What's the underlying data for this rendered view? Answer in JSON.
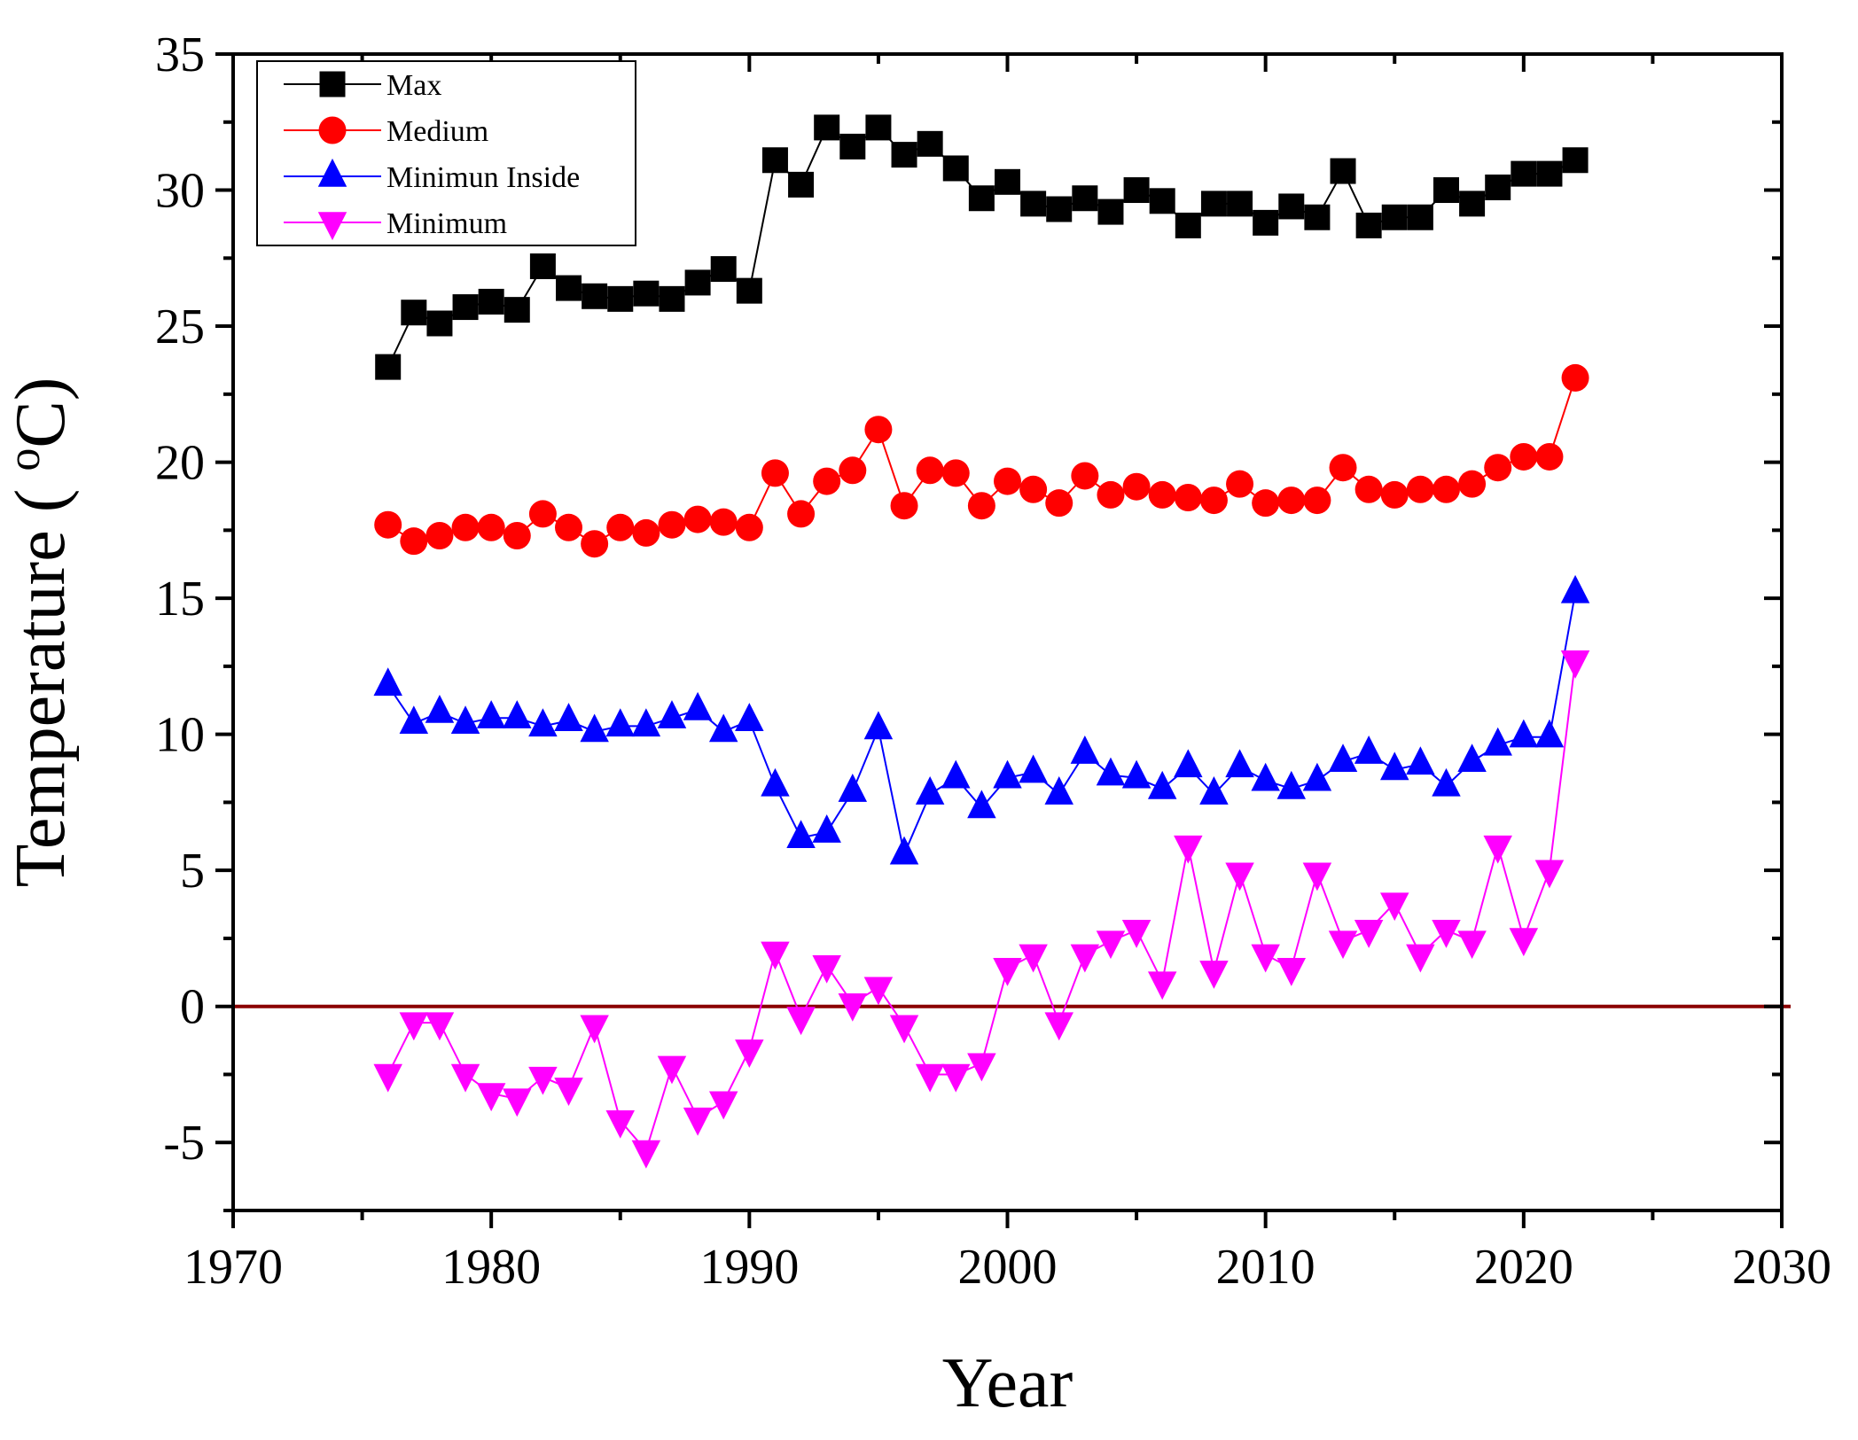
{
  "chart_data": {
    "type": "line",
    "title": "",
    "xlabel": "Year",
    "ylabel": "Temperature ( ",
    "ylabel_sup": "o",
    "ylabel_unit": "C)",
    "xlim": [
      1970,
      2030
    ],
    "ylim": [
      -7.5,
      35
    ],
    "xticks": [
      1970,
      1980,
      1990,
      2000,
      2010,
      2020,
      2030
    ],
    "yticks": [
      -5,
      0,
      5,
      10,
      15,
      20,
      25,
      30,
      35
    ],
    "xtick_labels": [
      "1970",
      "1980",
      "1990",
      "2000",
      "2010",
      "2020",
      "2030"
    ],
    "ytick_labels": [
      "-5",
      "0",
      "5",
      "10",
      "15",
      "20",
      "25",
      "30",
      "35"
    ],
    "reference_line": {
      "y": 0,
      "color": "#8b0000"
    },
    "legend_position": "top-left",
    "x": [
      1976,
      1977,
      1978,
      1979,
      1980,
      1981,
      1982,
      1983,
      1984,
      1985,
      1986,
      1987,
      1988,
      1989,
      1990,
      1991,
      1992,
      1993,
      1994,
      1995,
      1996,
      1997,
      1998,
      1999,
      2000,
      2001,
      2002,
      2003,
      2004,
      2005,
      2006,
      2007,
      2008,
      2009,
      2010,
      2011,
      2012,
      2013,
      2014,
      2015,
      2016,
      2017,
      2018,
      2019,
      2020,
      2021,
      2022
    ],
    "series": [
      {
        "name": "Max",
        "color": "#000000",
        "marker": "square",
        "values": [
          23.5,
          25.5,
          25.1,
          25.7,
          25.9,
          25.6,
          27.2,
          26.4,
          26.1,
          26.0,
          26.2,
          26.0,
          26.6,
          27.1,
          26.3,
          31.1,
          30.2,
          32.3,
          31.6,
          32.3,
          31.3,
          31.7,
          30.8,
          29.7,
          30.3,
          29.5,
          29.3,
          29.7,
          29.2,
          30.0,
          29.6,
          28.7,
          29.5,
          29.5,
          28.8,
          29.4,
          29.0,
          30.7,
          28.7,
          29.0,
          29.0,
          30.0,
          29.5,
          30.1,
          30.6,
          30.6,
          31.1
        ]
      },
      {
        "name": "Medium",
        "color": "#ff0000",
        "marker": "circle",
        "values": [
          17.7,
          17.1,
          17.3,
          17.6,
          17.6,
          17.3,
          18.1,
          17.6,
          17.0,
          17.6,
          17.4,
          17.7,
          17.9,
          17.8,
          17.6,
          19.6,
          18.1,
          19.3,
          19.7,
          21.2,
          18.4,
          19.7,
          19.6,
          18.4,
          19.3,
          19.0,
          18.5,
          19.5,
          18.8,
          19.1,
          18.8,
          18.7,
          18.6,
          19.2,
          18.5,
          18.6,
          18.6,
          19.8,
          19.0,
          18.8,
          19.0,
          19.0,
          19.2,
          19.8,
          20.2,
          20.2,
          23.1
        ]
      },
      {
        "name": "Minimun Inside",
        "color": "#0000ff",
        "marker": "triangle-up",
        "values": [
          11.8,
          10.4,
          10.8,
          10.4,
          10.6,
          10.6,
          10.3,
          10.5,
          10.1,
          10.3,
          10.3,
          10.6,
          10.9,
          10.1,
          10.5,
          8.1,
          6.2,
          6.4,
          7.9,
          10.2,
          5.6,
          7.8,
          8.4,
          7.3,
          8.4,
          8.6,
          7.8,
          9.3,
          8.5,
          8.4,
          8.0,
          8.8,
          7.8,
          8.8,
          8.3,
          8.0,
          8.3,
          9.0,
          9.3,
          8.7,
          8.9,
          8.1,
          9.0,
          9.6,
          9.9,
          9.9,
          15.2
        ]
      },
      {
        "name": "Minimum",
        "color": "#ff00ff",
        "marker": "triangle-down",
        "values": [
          -2.5,
          -0.6,
          -0.6,
          -2.5,
          -3.2,
          -3.4,
          -2.6,
          -3.0,
          -0.7,
          -4.2,
          -5.3,
          -2.2,
          -4.1,
          -3.5,
          -1.6,
          2.0,
          -0.4,
          1.5,
          0.1,
          0.7,
          -0.7,
          -2.5,
          -2.5,
          -2.1,
          1.4,
          1.9,
          -0.6,
          1.9,
          2.4,
          2.8,
          0.9,
          5.9,
          1.3,
          4.9,
          1.9,
          1.4,
          4.9,
          2.4,
          2.8,
          3.8,
          1.9,
          2.8,
          2.4,
          5.9,
          2.5,
          5.0,
          12.7
        ]
      }
    ]
  }
}
